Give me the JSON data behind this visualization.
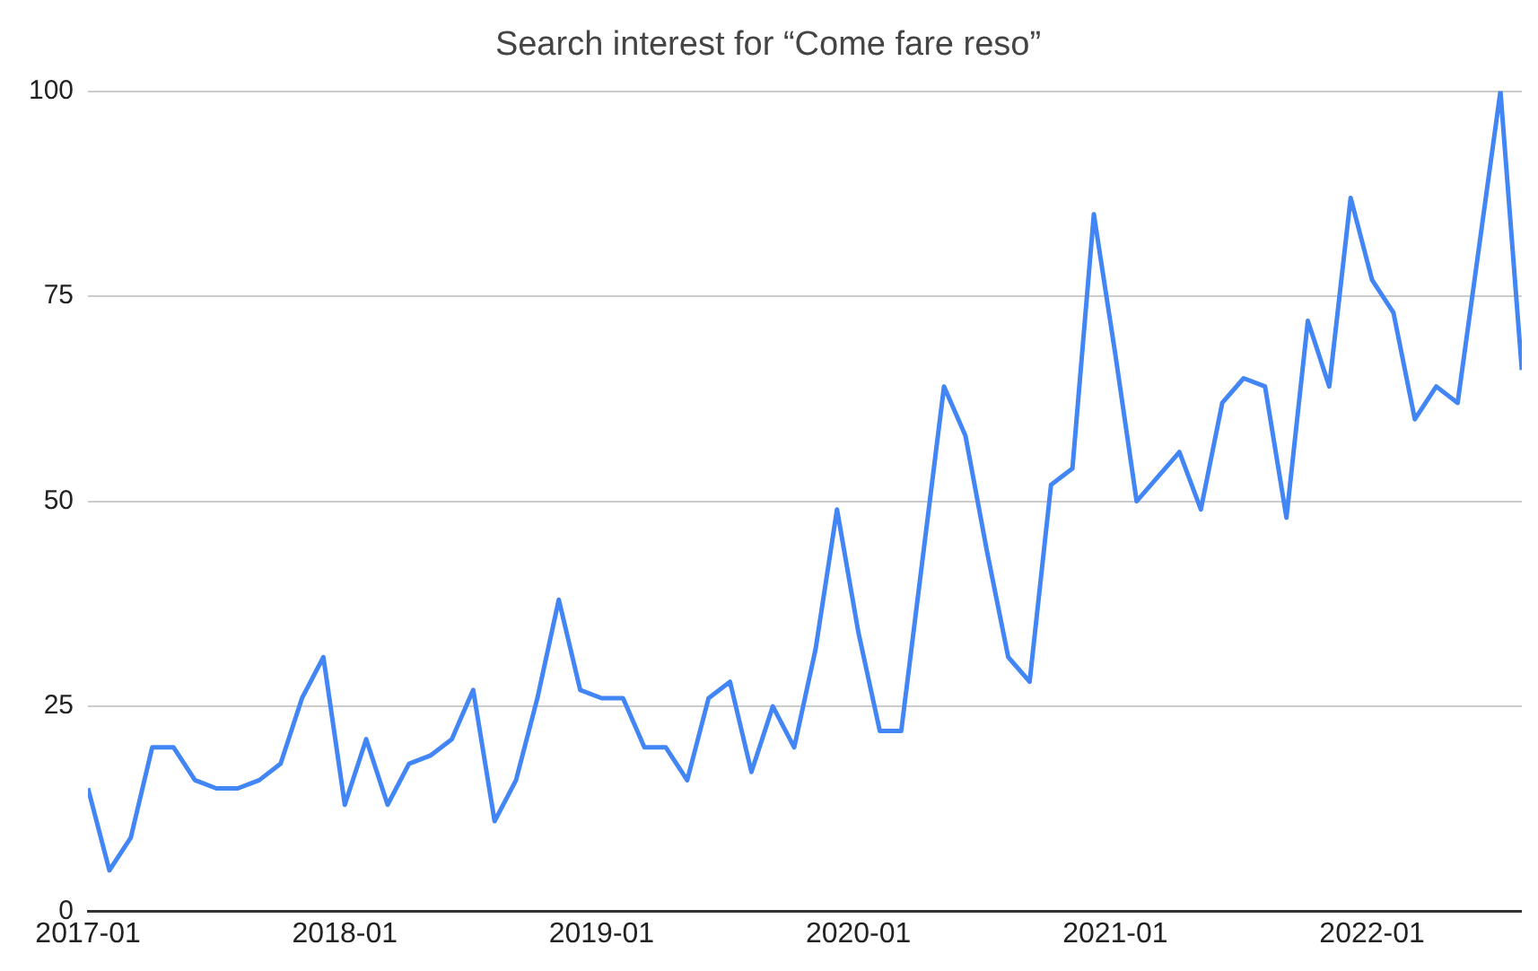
{
  "chart_data": {
    "type": "line",
    "title": "Search interest for “Come fare reso”",
    "x": [
      "2017-01",
      "2017-02",
      "2017-03",
      "2017-04",
      "2017-05",
      "2017-06",
      "2017-07",
      "2017-08",
      "2017-09",
      "2017-10",
      "2017-11",
      "2017-12",
      "2018-01",
      "2018-02",
      "2018-03",
      "2018-04",
      "2018-05",
      "2018-06",
      "2018-07",
      "2018-08",
      "2018-09",
      "2018-10",
      "2018-11",
      "2018-12",
      "2019-01",
      "2019-02",
      "2019-03",
      "2019-04",
      "2019-05",
      "2019-06",
      "2019-07",
      "2019-08",
      "2019-09",
      "2019-10",
      "2019-11",
      "2019-12",
      "2020-01",
      "2020-02",
      "2020-03",
      "2020-04",
      "2020-05",
      "2020-06",
      "2020-07",
      "2020-08",
      "2020-09",
      "2020-10",
      "2020-11",
      "2020-12",
      "2021-01",
      "2021-02",
      "2021-03",
      "2021-04",
      "2021-05",
      "2021-06",
      "2021-07",
      "2021-08",
      "2021-09",
      "2021-10",
      "2021-11",
      "2021-12",
      "2022-01",
      "2022-02",
      "2022-03",
      "2022-04",
      "2022-05",
      "2022-06",
      "2022-07",
      "2022-08"
    ],
    "series": [
      {
        "color": "#4285f4",
        "values": [
          15,
          5,
          9,
          20,
          20,
          16,
          15,
          15,
          16,
          18,
          26,
          31,
          13,
          21,
          13,
          18,
          19,
          21,
          27,
          11,
          16,
          26,
          38,
          27,
          26,
          26,
          20,
          20,
          16,
          26,
          28,
          17,
          25,
          20,
          32,
          49,
          34,
          22,
          22,
          43,
          64,
          58,
          44,
          31,
          28,
          52,
          54,
          85,
          68,
          50,
          53,
          56,
          49,
          62,
          65,
          64,
          48,
          72,
          64,
          87,
          77,
          73,
          60,
          64,
          62,
          81,
          100,
          66
        ]
      }
    ],
    "xlim": [
      "2017-01",
      "2022-08"
    ],
    "xticks": [
      "2017-01",
      "2018-01",
      "2019-01",
      "2020-01",
      "2021-01",
      "2022-01"
    ],
    "ylim": [
      0,
      100
    ],
    "yticks": [
      0,
      25,
      50,
      75,
      100
    ],
    "grid": "y",
    "legend": false,
    "marker": "none",
    "line_style": "solid"
  }
}
